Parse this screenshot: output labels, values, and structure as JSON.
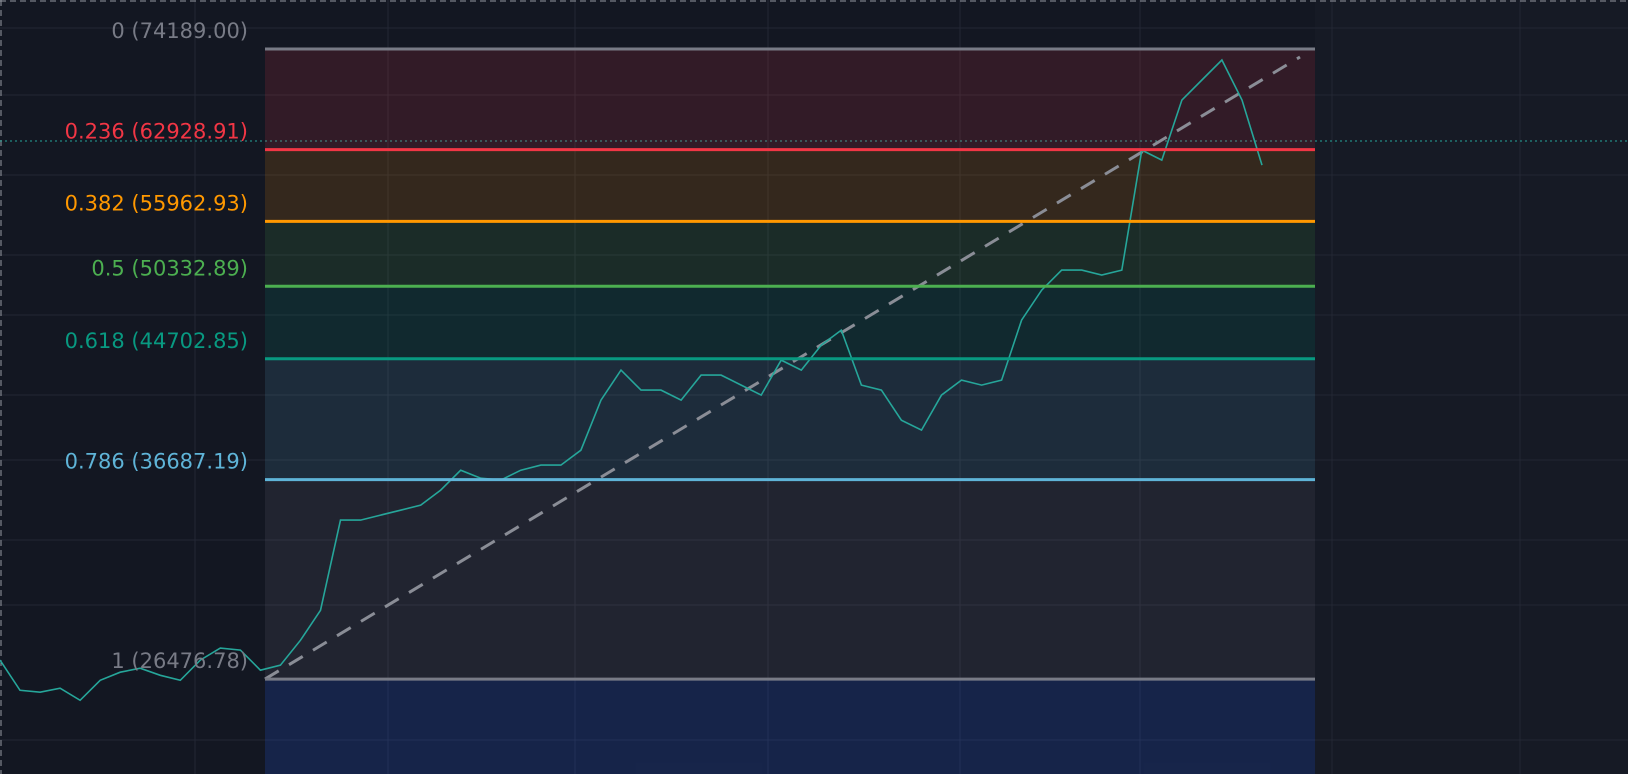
{
  "chart_data": {
    "type": "line",
    "log": true,
    "ylim": [
      22670,
      80380
    ],
    "values": [
      27310,
      25996,
      25914,
      26085,
      25573,
      26426,
      26775,
      26953,
      26641,
      26426,
      27310,
      27851,
      27762,
      26864,
      27086,
      28214,
      29631,
      34335,
      34335,
      34617,
      34899,
      35188,
      36063,
      37258,
      36775,
      36656,
      37258,
      37569,
      37569,
      38497,
      41783,
      43883,
      42473,
      42473,
      41783,
      43527,
      43527,
      42822,
      42125,
      44610,
      43883,
      45716,
      46850,
      42822,
      42473,
      40433,
      39780,
      42125,
      43171,
      42822,
      43171,
      47622,
      50018,
      51680,
      51680,
      51265,
      51680,
      62890,
      61866,
      68254,
      70524,
      72869,
      68254,
      61362
    ],
    "color": "#26a69a",
    "levels": [
      {
        "label": "0 (74189.00)",
        "value": 74189.0,
        "color": "#787b86"
      },
      {
        "label": "0.236 (62928.91)",
        "value": 62928.91,
        "color": "#f23645"
      },
      {
        "label": "0.382 (55962.93)",
        "value": 55962.93,
        "color": "#ff9800"
      },
      {
        "label": "0.5 (50332.89)",
        "value": 50332.89,
        "color": "#4caf50"
      },
      {
        "label": "0.618 (44702.85)",
        "value": 44702.85,
        "color": "#089981"
      },
      {
        "label": "0.786 (36687.19)",
        "value": 36687.19,
        "color": "#5fb4d8"
      },
      {
        "label": "1 (26476.78)",
        "value": 26476.78,
        "color": "#787b86"
      }
    ]
  }
}
